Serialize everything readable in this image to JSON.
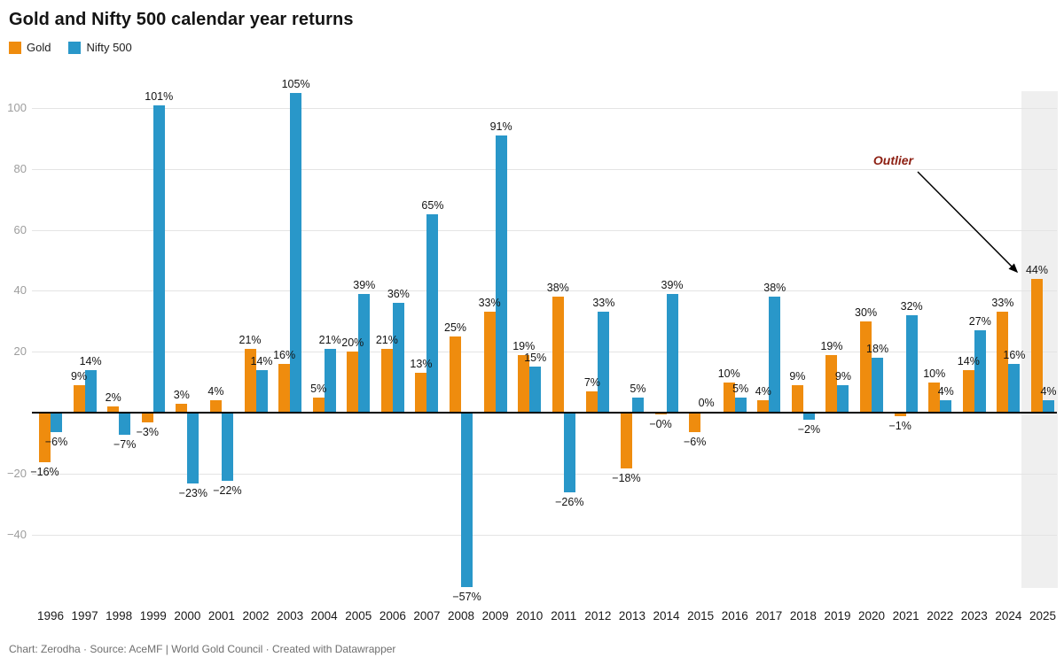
{
  "header": {
    "title": "Gold and Nifty 500 calendar year returns"
  },
  "footer": {
    "credit": "Chart: Zerodha · Source: AceMF | World Gold Council · Created with Datawrapper"
  },
  "chart_data": {
    "type": "bar",
    "title": "Gold and Nifty 500 calendar year returns",
    "categories": [
      "1996",
      "1997",
      "1998",
      "1999",
      "2000",
      "2001",
      "2002",
      "2003",
      "2004",
      "2005",
      "2006",
      "2007",
      "2008",
      "2009",
      "2010",
      "2011",
      "2012",
      "2013",
      "2014",
      "2015",
      "2016",
      "2017",
      "2018",
      "2019",
      "2020",
      "2021",
      "2022",
      "2023",
      "2024",
      "2025"
    ],
    "series": [
      {
        "name": "Gold",
        "color": "#ef8c0e",
        "values": [
          -16,
          9,
          2,
          -3,
          3,
          4,
          21,
          16,
          5,
          20,
          21,
          13,
          25,
          33,
          19,
          38,
          7,
          -18,
          0,
          -6,
          10,
          4,
          9,
          19,
          30,
          -1,
          10,
          14,
          33,
          44
        ],
        "labels": [
          "−16%",
          "9%",
          "2%",
          "−3%",
          "3%",
          "4%",
          "21%",
          "16%",
          "5%",
          "20%",
          "21%",
          "13%",
          "25%",
          "33%",
          "19%",
          "38%",
          "7%",
          "−18%",
          "−0%",
          "−6%",
          "10%",
          "4%",
          "9%",
          "19%",
          "30%",
          "−1%",
          "10%",
          "14%",
          "33%",
          "44%"
        ]
      },
      {
        "name": "Nifty 500",
        "color": "#2997c9",
        "values": [
          -6,
          14,
          -7,
          101,
          -23,
          -22,
          14,
          105,
          21,
          39,
          36,
          65,
          -57,
          91,
          15,
          -26,
          33,
          5,
          39,
          0,
          5,
          38,
          -2,
          9,
          18,
          32,
          4,
          27,
          16,
          4
        ],
        "labels": [
          "−6%",
          "14%",
          "−7%",
          "101%",
          "−23%",
          "−22%",
          "14%",
          "105%",
          "21%",
          "39%",
          "36%",
          "65%",
          "−57%",
          "91%",
          "15%",
          "−26%",
          "33%",
          "5%",
          "39%",
          "0%",
          "5%",
          "38%",
          "−2%",
          "9%",
          "18%",
          "32%",
          "4%",
          "27%",
          "16%",
          "4%"
        ]
      }
    ],
    "y_axis": {
      "unit": "%",
      "range": [
        -60,
        110
      ],
      "grid": true,
      "ticks": [
        {
          "value": 100,
          "label": "100"
        },
        {
          "value": 80,
          "label": "80"
        },
        {
          "value": 60,
          "label": "60"
        },
        {
          "value": 40,
          "label": "40"
        },
        {
          "value": 20,
          "label": "20"
        },
        {
          "value": -20,
          "label": "−20"
        },
        {
          "value": -40,
          "label": "−40"
        }
      ]
    },
    "legend_position": "top-left",
    "highlight_band": {
      "year": "2025"
    },
    "annotation": {
      "text": "Outlier",
      "target_year": "2025",
      "target_series": "Gold",
      "color": "#8e2114"
    }
  }
}
